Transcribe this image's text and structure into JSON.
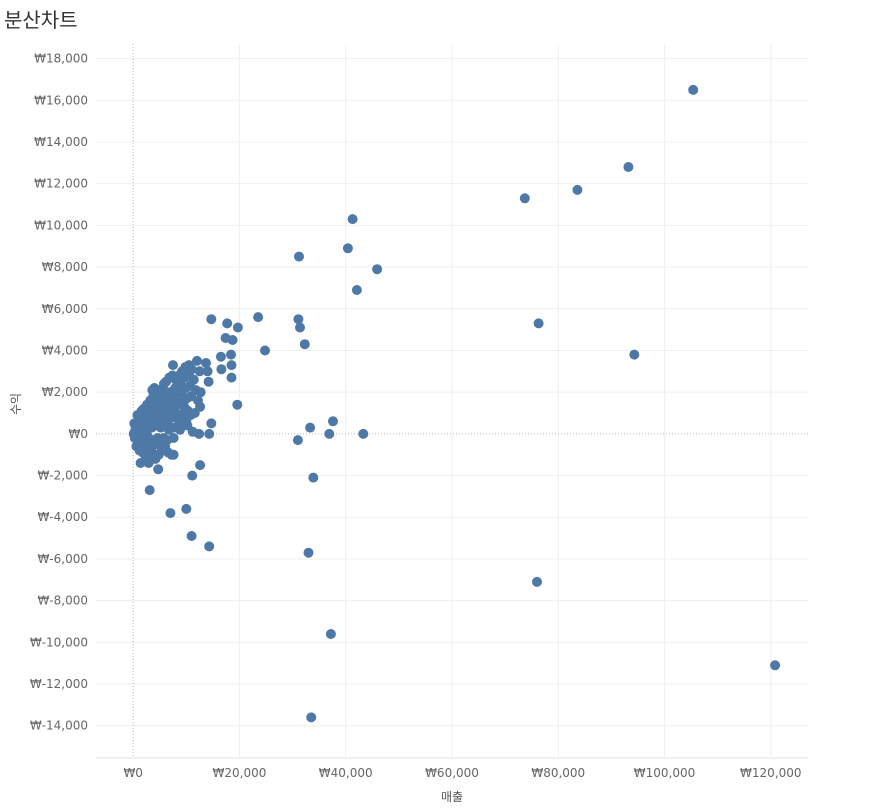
{
  "chart_data": {
    "type": "scatter",
    "title": "분산차트",
    "xlabel": "매출",
    "ylabel": "수익",
    "xlim": [
      -7000,
      127000
    ],
    "ylim": [
      -15500,
      18700
    ],
    "x_ticks": [
      0,
      20000,
      40000,
      60000,
      80000,
      100000,
      120000
    ],
    "x_tick_labels": [
      "₩0",
      "₩20,000",
      "₩40,000",
      "₩60,000",
      "₩80,000",
      "₩100,000",
      "₩120,000"
    ],
    "y_ticks": [
      -14000,
      -12000,
      -10000,
      -8000,
      -6000,
      -4000,
      -2000,
      0,
      2000,
      4000,
      6000,
      8000,
      10000,
      12000,
      14000,
      16000,
      18000
    ],
    "y_tick_labels": [
      "₩-14,000",
      "₩-12,000",
      "₩-10,000",
      "₩-8,000",
      "₩-6,000",
      "₩-4,000",
      "₩-2,000",
      "₩0",
      "₩2,000",
      "₩4,000",
      "₩6,000",
      "₩8,000",
      "₩10,000",
      "₩12,000",
      "₩14,000",
      "₩16,000",
      "₩18,000"
    ],
    "grid": true,
    "marker_color": "#4e79a7",
    "points": [
      [
        105400,
        16500
      ],
      [
        93200,
        12800
      ],
      [
        83600,
        11700
      ],
      [
        73700,
        11300
      ],
      [
        41300,
        10300
      ],
      [
        40400,
        8900
      ],
      [
        31200,
        8500
      ],
      [
        45900,
        7900
      ],
      [
        42100,
        6900
      ],
      [
        76300,
        5300
      ],
      [
        94300,
        3800
      ],
      [
        23500,
        5600
      ],
      [
        31100,
        5500
      ],
      [
        31400,
        5100
      ],
      [
        14700,
        5500
      ],
      [
        17700,
        5300
      ],
      [
        19700,
        5100
      ],
      [
        17400,
        4600
      ],
      [
        18700,
        4500
      ],
      [
        32300,
        4300
      ],
      [
        24800,
        4000
      ],
      [
        16500,
        3700
      ],
      [
        18400,
        3800
      ],
      [
        12000,
        3500
      ],
      [
        13700,
        3400
      ],
      [
        10500,
        3300
      ],
      [
        7500,
        3300
      ],
      [
        18500,
        3300
      ],
      [
        16600,
        3100
      ],
      [
        14000,
        3000
      ],
      [
        12500,
        3000
      ],
      [
        18500,
        2700
      ],
      [
        14200,
        2500
      ],
      [
        12700,
        2000
      ],
      [
        19600,
        1400
      ],
      [
        12600,
        1300
      ],
      [
        11600,
        1000
      ],
      [
        37600,
        600
      ],
      [
        14700,
        500
      ],
      [
        33300,
        300
      ],
      [
        43300,
        0
      ],
      [
        36900,
        0
      ],
      [
        14300,
        0
      ],
      [
        11200,
        100
      ],
      [
        12400,
        0
      ],
      [
        31000,
        -300
      ],
      [
        33900,
        -2100
      ],
      [
        12600,
        -1500
      ],
      [
        11100,
        -2000
      ],
      [
        7200,
        -1000
      ],
      [
        7600,
        -1000
      ],
      [
        4700,
        -1700
      ],
      [
        2900,
        -1400
      ],
      [
        1400,
        -1400
      ],
      [
        3100,
        -2700
      ],
      [
        7000,
        -3800
      ],
      [
        10000,
        -3600
      ],
      [
        11000,
        -4900
      ],
      [
        14300,
        -5400
      ],
      [
        33000,
        -5700
      ],
      [
        37200,
        -9600
      ],
      [
        33500,
        -13600
      ],
      [
        76000,
        -7100
      ],
      [
        120800,
        -11100
      ],
      [
        100,
        0
      ],
      [
        400,
        200
      ],
      [
        700,
        -300
      ],
      [
        900,
        400
      ],
      [
        1100,
        100
      ],
      [
        1300,
        -200
      ],
      [
        1500,
        600
      ],
      [
        1700,
        300
      ],
      [
        1900,
        -400
      ],
      [
        2100,
        800
      ],
      [
        2300,
        500
      ],
      [
        2500,
        200
      ],
      [
        2700,
        -100
      ],
      [
        2900,
        900
      ],
      [
        3100,
        1100
      ],
      [
        3300,
        600
      ],
      [
        3500,
        300
      ],
      [
        3700,
        -300
      ],
      [
        3900,
        1300
      ],
      [
        4100,
        1000
      ],
      [
        4300,
        700
      ],
      [
        4500,
        400
      ],
      [
        4700,
        -500
      ],
      [
        4900,
        1500
      ],
      [
        5100,
        1200
      ],
      [
        5300,
        800
      ],
      [
        5500,
        500
      ],
      [
        5700,
        -200
      ],
      [
        5900,
        1700
      ],
      [
        6100,
        1400
      ],
      [
        6300,
        1000
      ],
      [
        6500,
        600
      ],
      [
        6700,
        200
      ],
      [
        6900,
        2000
      ],
      [
        7100,
        1600
      ],
      [
        7300,
        1200
      ],
      [
        7500,
        800
      ],
      [
        7700,
        300
      ],
      [
        7900,
        2200
      ],
      [
        8100,
        1800
      ],
      [
        8300,
        1400
      ],
      [
        8500,
        900
      ],
      [
        8700,
        500
      ],
      [
        8900,
        2400
      ],
      [
        9100,
        2000
      ],
      [
        9300,
        1500
      ],
      [
        9500,
        1000
      ],
      [
        9700,
        2700
      ],
      [
        9900,
        2200
      ],
      [
        10100,
        1700
      ],
      [
        10300,
        1100
      ],
      [
        10500,
        2900
      ],
      [
        10700,
        2300
      ],
      [
        10900,
        1800
      ],
      [
        600,
        -600
      ],
      [
        1200,
        -800
      ],
      [
        1800,
        -900
      ],
      [
        2400,
        -1100
      ],
      [
        3000,
        -1000
      ],
      [
        3600,
        -900
      ],
      [
        4200,
        -1200
      ],
      [
        4800,
        -1000
      ],
      [
        5400,
        -800
      ],
      [
        6000,
        -600
      ],
      [
        6600,
        -900
      ],
      [
        200,
        500
      ],
      [
        800,
        900
      ],
      [
        1400,
        1000
      ],
      [
        2000,
        1200
      ],
      [
        2600,
        1400
      ],
      [
        3200,
        1600
      ],
      [
        3800,
        1800
      ],
      [
        4400,
        2000
      ],
      [
        5000,
        2100
      ],
      [
        5600,
        2200
      ],
      [
        6200,
        2500
      ],
      [
        6800,
        2700
      ],
      [
        7400,
        2800
      ],
      [
        8000,
        2600
      ],
      [
        8600,
        2800
      ],
      [
        9200,
        3000
      ],
      [
        9800,
        3200
      ],
      [
        5200,
        300
      ],
      [
        6400,
        -300
      ],
      [
        7600,
        -200
      ],
      [
        8800,
        200
      ],
      [
        4000,
        2200
      ],
      [
        5800,
        2400
      ],
      [
        7200,
        1800
      ],
      [
        8400,
        1600
      ],
      [
        9600,
        1300
      ],
      [
        10800,
        900
      ],
      [
        2200,
        -500
      ],
      [
        3400,
        -700
      ],
      [
        4600,
        -200
      ],
      [
        300,
        -200
      ],
      [
        1000,
        -500
      ],
      [
        1600,
        1100
      ],
      [
        2800,
        300
      ],
      [
        3600,
        2100
      ],
      [
        5400,
        1900
      ],
      [
        6600,
        1500
      ],
      [
        7800,
        1100
      ],
      [
        9000,
        700
      ],
      [
        10200,
        400
      ],
      [
        11400,
        2600
      ],
      [
        11800,
        2100
      ],
      [
        12200,
        1600
      ],
      [
        11000,
        3100
      ],
      [
        10000,
        600
      ]
    ]
  }
}
